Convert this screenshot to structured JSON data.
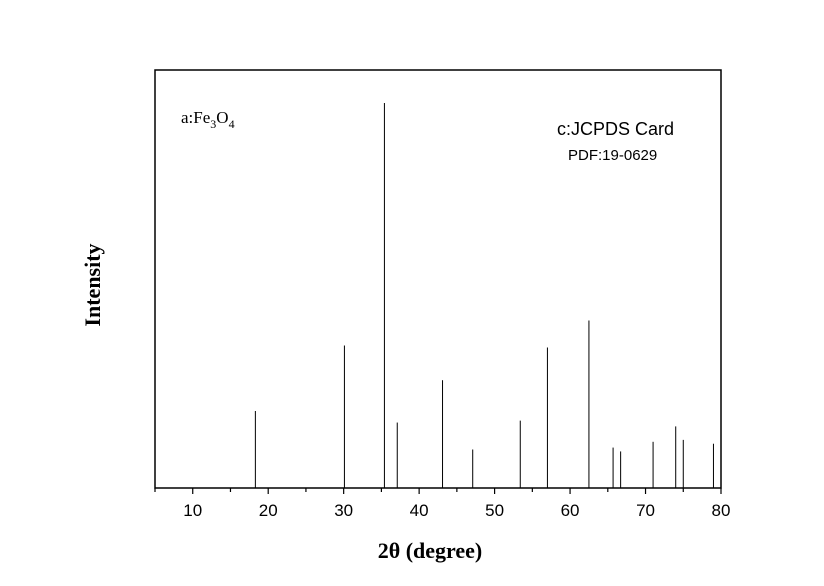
{
  "chart_data": {
    "type": "bar",
    "subtype": "stick-pattern",
    "xlabel": "2θ (degree)",
    "ylabel": "Intensity",
    "xlim": [
      5,
      80
    ],
    "ylim": [
      0,
      100
    ],
    "xticks": [
      10,
      20,
      30,
      40,
      50,
      60,
      70,
      80
    ],
    "y_tick_labels_shown": false,
    "grid": false,
    "legend": "none",
    "sample_label": {
      "prefix": "a:Fe",
      "sub1": "3",
      "mid": "O",
      "sub2": "4"
    },
    "annotations": [
      "c:JCPDS Card",
      "PDF:19-0629"
    ],
    "series": [
      {
        "x": [
          18.3,
          30.1,
          35.4,
          37.1,
          43.1,
          47.1,
          53.4,
          57.0,
          62.5,
          65.7,
          66.7,
          71.0,
          74.0,
          75.0,
          79.0
        ],
        "values": [
          20,
          37,
          100,
          17,
          28,
          10,
          17.5,
          36.5,
          43.5,
          10.5,
          9.5,
          12,
          16,
          12.5,
          11.5
        ]
      }
    ],
    "line_color": "#000000"
  }
}
